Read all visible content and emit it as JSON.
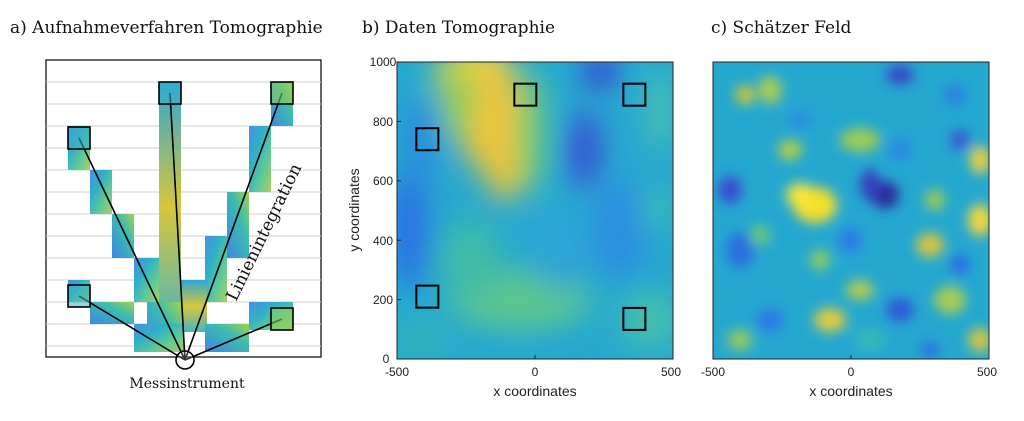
{
  "panels": {
    "a": {
      "title": "a) Aufnahmeverfahren Tomographie",
      "instrument_label": "Messinstrument",
      "line_label": "Linienintegration"
    },
    "b": {
      "title": "b) Daten Tomographie",
      "xlabel": "x coordinates",
      "ylabel": "y coordinates",
      "xticks": [
        "-500",
        "0",
        "500"
      ],
      "yticks": [
        "0",
        "200",
        "400",
        "600",
        "800",
        "1000"
      ]
    },
    "c": {
      "title": "c) Schätzer Feld",
      "xlabel": "x coordinates",
      "xticks": [
        "-500",
        "0",
        "500"
      ]
    }
  },
  "chart_data": [
    {
      "type": "heatmap",
      "title": "b) Daten Tomographie",
      "xlabel": "x coordinates",
      "ylabel": "y coordinates",
      "xlim": [
        -500,
        500
      ],
      "ylim": [
        0,
        1000
      ],
      "colormap": "parula",
      "markers": [
        {
          "x": -390,
          "y": 740
        },
        {
          "x": -35,
          "y": 890
        },
        {
          "x": 360,
          "y": 890
        },
        {
          "x": -390,
          "y": 210
        },
        {
          "x": 360,
          "y": 135
        }
      ]
    },
    {
      "type": "heatmap",
      "title": "c) Schätzer Feld",
      "xlabel": "x coordinates",
      "xlim": [
        -500,
        500
      ],
      "ylim": [
        0,
        1000
      ],
      "colormap": "parula"
    }
  ],
  "colors": {
    "parula_low": "#3d26a8",
    "parula_mid": "#1fb7a0",
    "parula_high": "#f9e11f",
    "marker": "#000000"
  }
}
